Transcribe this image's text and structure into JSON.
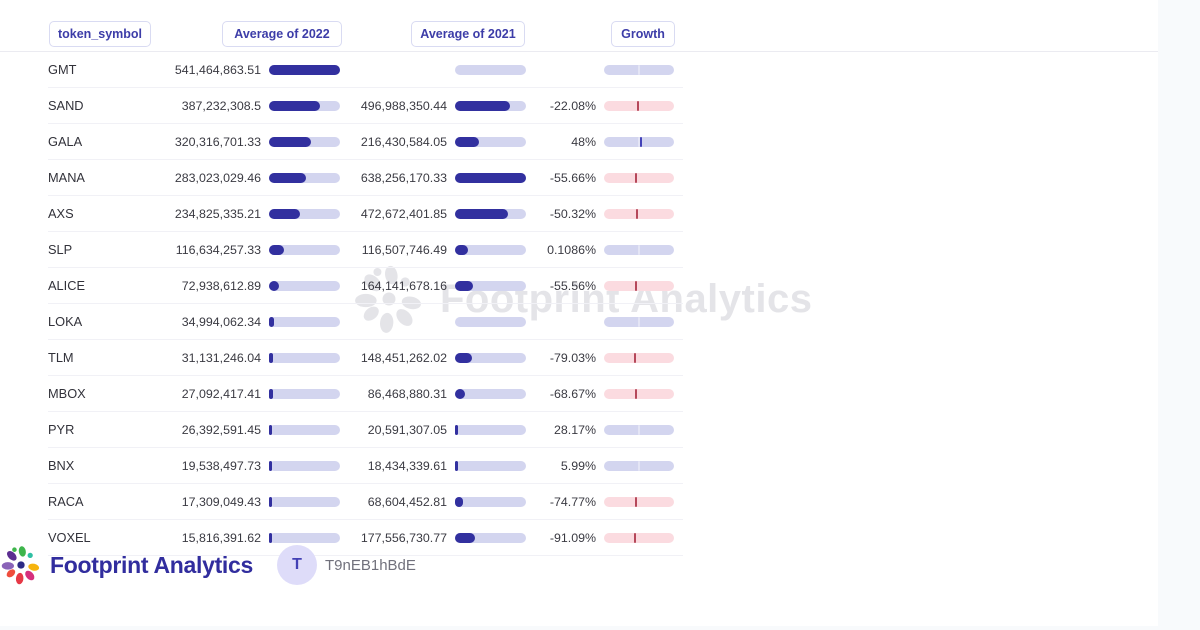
{
  "header": {
    "columns": [
      {
        "label": "token_symbol"
      },
      {
        "label": "Average of 2022"
      },
      {
        "label": "Average of 2021"
      },
      {
        "label": "Growth"
      }
    ]
  },
  "chart_data": {
    "type": "table",
    "columns": [
      "token_symbol",
      "Average of 2022",
      "Average of 2021",
      "Growth"
    ],
    "bar_scale": {
      "avg_2022_max": 541464863.51,
      "avg_2021_max": 638256170.33
    },
    "rows": [
      {
        "symbol": "GMT",
        "avg_2022": "541,464,863.51",
        "avg_2022_num": 541464863.51,
        "avg_2021": null,
        "avg_2021_num": null,
        "growth": null,
        "growth_num": null
      },
      {
        "symbol": "SAND",
        "avg_2022": "387,232,308.5",
        "avg_2022_num": 387232308.5,
        "avg_2021": "496,988,350.44",
        "avg_2021_num": 496988350.44,
        "growth": "-22.08%",
        "growth_num": -22.08
      },
      {
        "symbol": "GALA",
        "avg_2022": "320,316,701.33",
        "avg_2022_num": 320316701.33,
        "avg_2021": "216,430,584.05",
        "avg_2021_num": 216430584.05,
        "growth": "48%",
        "growth_num": 48
      },
      {
        "symbol": "MANA",
        "avg_2022": "283,023,029.46",
        "avg_2022_num": 283023029.46,
        "avg_2021": "638,256,170.33",
        "avg_2021_num": 638256170.33,
        "growth": "-55.66%",
        "growth_num": -55.66
      },
      {
        "symbol": "AXS",
        "avg_2022": "234,825,335.21",
        "avg_2022_num": 234825335.21,
        "avg_2021": "472,672,401.85",
        "avg_2021_num": 472672401.85,
        "growth": "-50.32%",
        "growth_num": -50.32
      },
      {
        "symbol": "SLP",
        "avg_2022": "116,634,257.33",
        "avg_2022_num": 116634257.33,
        "avg_2021": "116,507,746.49",
        "avg_2021_num": 116507746.49,
        "growth": "0.1086%",
        "growth_num": 0.1086
      },
      {
        "symbol": "ALICE",
        "avg_2022": "72,938,612.89",
        "avg_2022_num": 72938612.89,
        "avg_2021": "164,141,678.16",
        "avg_2021_num": 164141678.16,
        "growth": "-55.56%",
        "growth_num": -55.56
      },
      {
        "symbol": "LOKA",
        "avg_2022": "34,994,062.34",
        "avg_2022_num": 34994062.34,
        "avg_2021": null,
        "avg_2021_num": null,
        "growth": null,
        "growth_num": null
      },
      {
        "symbol": "TLM",
        "avg_2022": "31,131,246.04",
        "avg_2022_num": 31131246.04,
        "avg_2021": "148,451,262.02",
        "avg_2021_num": 148451262.02,
        "growth": "-79.03%",
        "growth_num": -79.03
      },
      {
        "symbol": "MBOX",
        "avg_2022": "27,092,417.41",
        "avg_2022_num": 27092417.41,
        "avg_2021": "86,468,880.31",
        "avg_2021_num": 86468880.31,
        "growth": "-68.67%",
        "growth_num": -68.67
      },
      {
        "symbol": "PYR",
        "avg_2022": "26,392,591.45",
        "avg_2022_num": 26392591.45,
        "avg_2021": "20,591,307.05",
        "avg_2021_num": 20591307.05,
        "growth": "28.17%",
        "growth_num": 28.17
      },
      {
        "symbol": "BNX",
        "avg_2022": "19,538,497.73",
        "avg_2022_num": 19538497.73,
        "avg_2021": "18,434,339.61",
        "avg_2021_num": 18434339.61,
        "growth": "5.99%",
        "growth_num": 5.99
      },
      {
        "symbol": "RACA",
        "avg_2022": "17,309,049.43",
        "avg_2022_num": 17309049.43,
        "avg_2021": "68,604,452.81",
        "avg_2021_num": 68604452.81,
        "growth": "-74.77%",
        "growth_num": -74.77
      },
      {
        "symbol": "VOXEL",
        "avg_2022": "15,816,391.62",
        "avg_2022_num": 15816391.62,
        "avg_2021": "177,556,730.77",
        "avg_2021_num": 177556730.77,
        "growth": "-91.09%",
        "growth_num": -91.09
      }
    ]
  },
  "watermark": {
    "text": "Footprint Analytics"
  },
  "footer": {
    "brand": "Footprint Analytics",
    "avatar_letter": "T",
    "username": "T9nEB1hBdE"
  },
  "colors": {
    "bar_fill": "#32309f",
    "bar_track": "#d3d5ef",
    "bar_track_negative": "#fbdbe0",
    "marker_negative": "#b5485a",
    "marker_positive": "#4342b8",
    "pill_text": "#3d3da8",
    "brand_indigo": "#312d9e",
    "watermark_gray": "#e4e4e8",
    "page_strip": "#f8fafc"
  }
}
